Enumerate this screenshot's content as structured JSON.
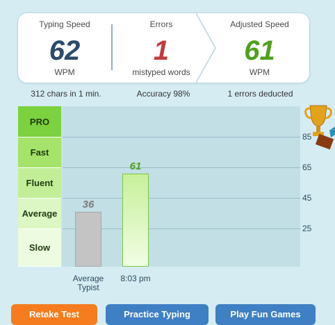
{
  "stats": {
    "typing_speed": {
      "label": "Typing Speed",
      "value": "62",
      "unit": "WPM",
      "color": "#2b4a6b"
    },
    "errors": {
      "label": "Errors",
      "value": "1",
      "unit": "mistyped words",
      "color": "#c13b3b"
    },
    "adjusted_speed": {
      "label": "Adjusted Speed",
      "value": "61",
      "unit": "WPM",
      "color": "#4fa01b"
    }
  },
  "summary": {
    "chars": "312 chars in 1 min.",
    "accuracy": "Accuracy 98%",
    "deducted": "1 errors deducted"
  },
  "levels": [
    "PRO",
    "Fast",
    "Fluent",
    "Average",
    "Slow"
  ],
  "chart_data": {
    "type": "bar",
    "categories": [
      "Average Typist",
      "8:03 pm"
    ],
    "values": [
      36,
      61
    ],
    "y_ticks": [
      25,
      45,
      65,
      85
    ],
    "ylim": [
      0,
      105
    ],
    "grid": true,
    "colors": [
      "#c4c4c4",
      "#d9f5b8"
    ]
  },
  "buttons": {
    "retake": "Retake Test",
    "practice": "Practice Typing",
    "play": "Play Fun Games"
  }
}
